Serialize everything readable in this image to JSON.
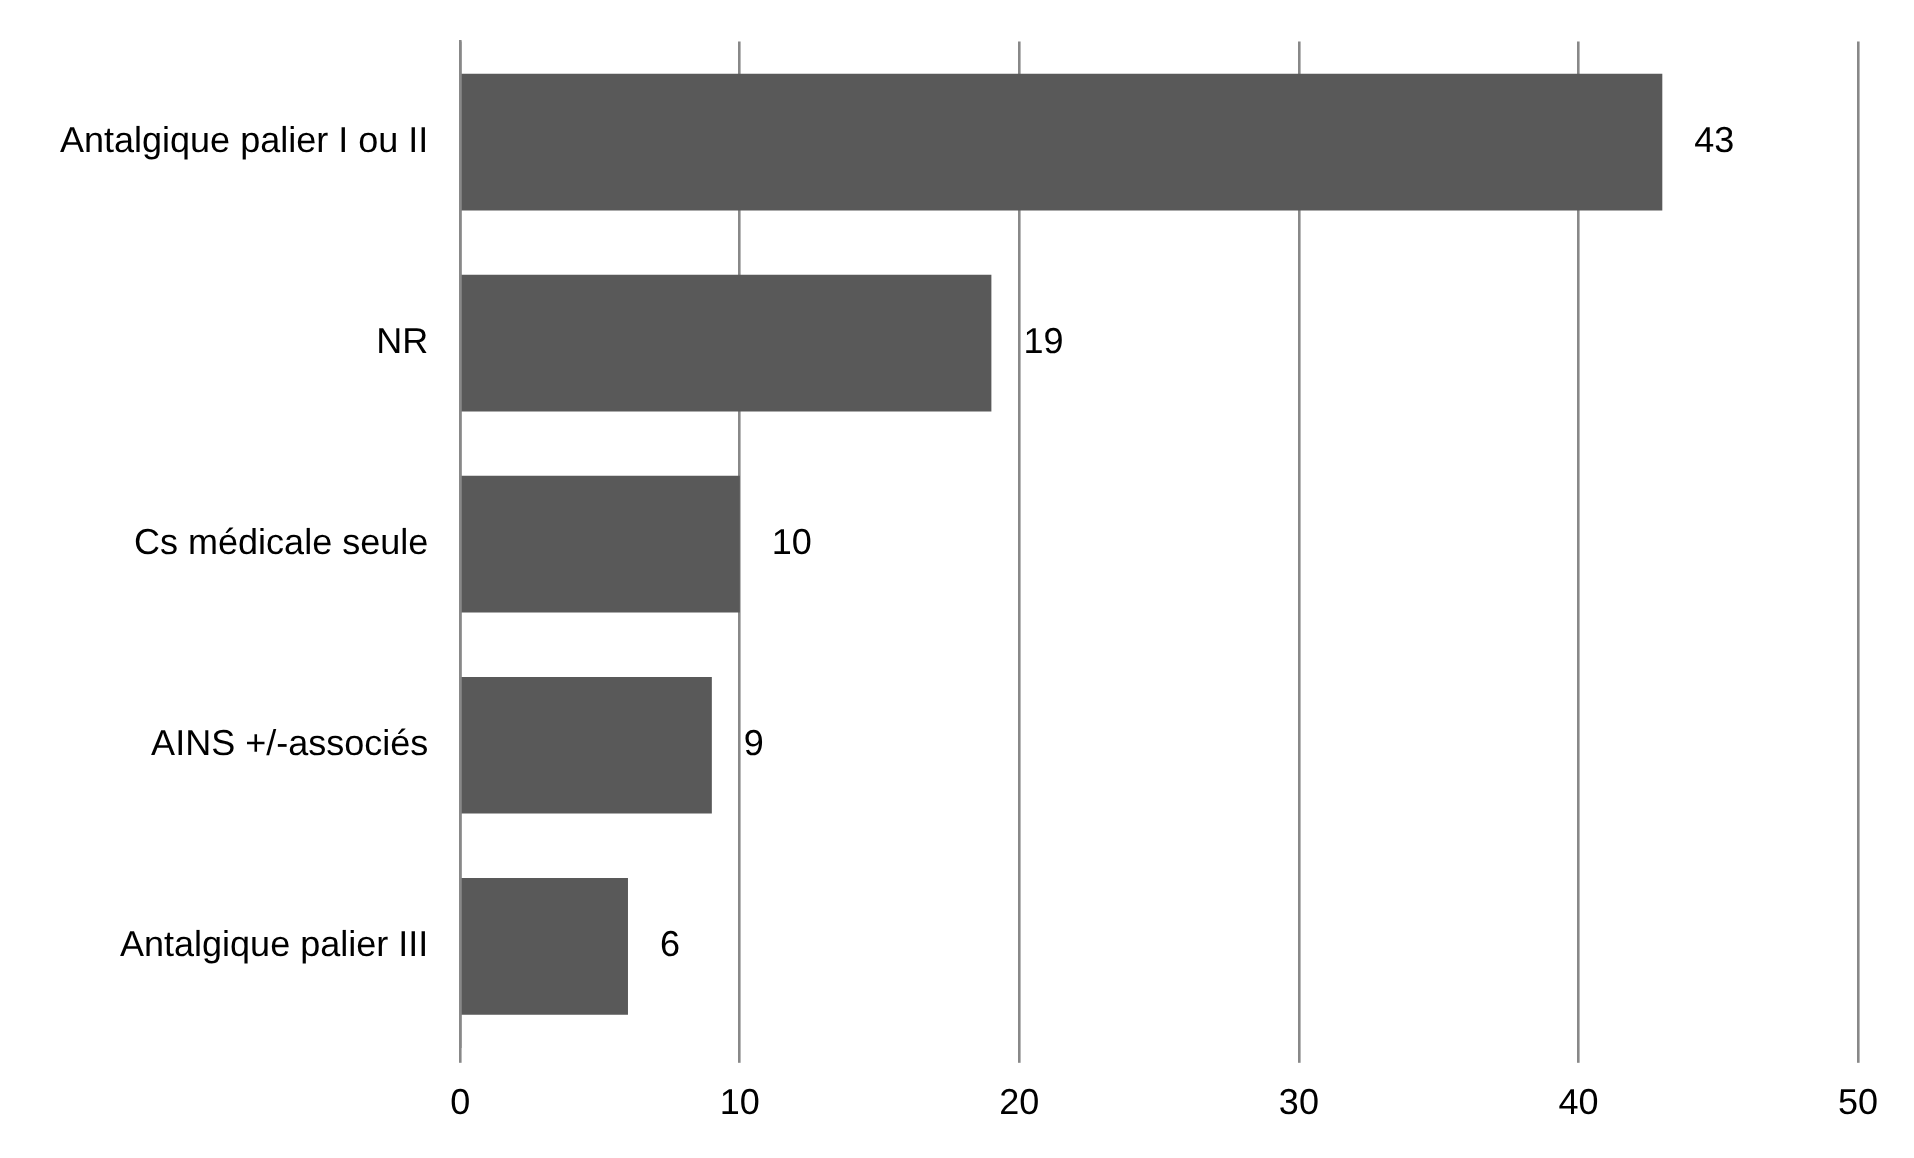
{
  "chart_data": {
    "type": "bar",
    "orientation": "horizontal",
    "categories": [
      "Antalgique palier I ou II",
      "NR",
      "Cs médicale seule",
      "AINS +/-associés",
      "Antalgique palier III"
    ],
    "values": [
      43,
      19,
      10,
      9,
      6
    ],
    "color": "#595959",
    "xlim": [
      0,
      50
    ],
    "xticks": [
      0,
      10,
      20,
      30,
      40,
      50
    ],
    "grid": "x",
    "data_labels": true,
    "legend": false
  }
}
